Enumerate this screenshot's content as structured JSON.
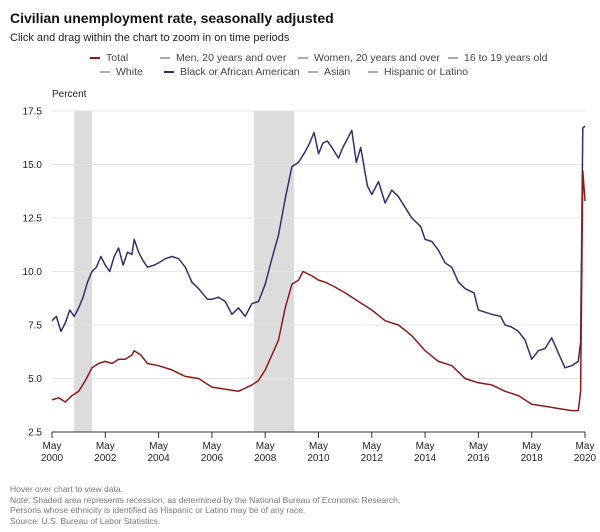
{
  "header": {
    "title": "Civilian unemployment rate, seasonally adjusted",
    "subtitle": "Click and drag within the chart to zoom in on time periods"
  },
  "legend": [
    {
      "label": "Total",
      "color": "#8b1a1a",
      "active": true
    },
    {
      "label": "Men, 20 years and over",
      "color": "#aaaaaa",
      "active": false
    },
    {
      "label": "Women, 20 years and over",
      "color": "#aaaaaa",
      "active": false
    },
    {
      "label": "16 to 19 years old",
      "color": "#aaaaaa",
      "active": false
    },
    {
      "label": "White",
      "color": "#aaaaaa",
      "active": false
    },
    {
      "label": "Black or African American",
      "color": "#3b2c6b",
      "active": true
    },
    {
      "label": "Asian",
      "color": "#aaaaaa",
      "active": false
    },
    {
      "label": "Hispanic or Latino",
      "color": "#aaaaaa",
      "active": false
    }
  ],
  "footer": {
    "hover_note": "Hover over chart to view data.",
    "note_recession": "Note: Shaded area represents recession, as determined by the National Bureau of Economic Research.",
    "note_ethnicity": "Persons whose ethnicity is identified as Hispanic or Latino may be of any race.",
    "source": "Source: U.S. Bureau of Labor Statistics."
  },
  "chart_data": {
    "type": "line",
    "ylabel": "Percent",
    "ylim": [
      2.5,
      17.5
    ],
    "yticks": [
      "2.5",
      "5.0",
      "7.5",
      "10.0",
      "12.5",
      "15.0",
      "17.5"
    ],
    "xlim": [
      "2000-05",
      "2020-05"
    ],
    "xticks": [
      {
        "month": "May",
        "year": "2000"
      },
      {
        "month": "May",
        "year": "2002"
      },
      {
        "month": "May",
        "year": "2004"
      },
      {
        "month": "May",
        "year": "2006"
      },
      {
        "month": "May",
        "year": "2008"
      },
      {
        "month": "May",
        "year": "2010"
      },
      {
        "month": "May",
        "year": "2012"
      },
      {
        "month": "May",
        "year": "2014"
      },
      {
        "month": "May",
        "year": "2016"
      },
      {
        "month": "May",
        "year": "2018"
      },
      {
        "month": "May",
        "year": "2020"
      }
    ],
    "recessions": [
      {
        "start": "2001-03",
        "end": "2001-11"
      },
      {
        "start": "2007-12",
        "end": "2009-06"
      }
    ],
    "series": [
      {
        "name": "Total",
        "color": "#8b1a1a",
        "points": [
          [
            "2000-05",
            4.0
          ],
          [
            "2000-08",
            4.1
          ],
          [
            "2000-11",
            3.9
          ],
          [
            "2001-02",
            4.2
          ],
          [
            "2001-05",
            4.4
          ],
          [
            "2001-08",
            4.9
          ],
          [
            "2001-11",
            5.5
          ],
          [
            "2002-02",
            5.7
          ],
          [
            "2002-05",
            5.8
          ],
          [
            "2002-08",
            5.7
          ],
          [
            "2002-11",
            5.9
          ],
          [
            "2003-02",
            5.9
          ],
          [
            "2003-05",
            6.1
          ],
          [
            "2003-06",
            6.3
          ],
          [
            "2003-09",
            6.1
          ],
          [
            "2003-12",
            5.7
          ],
          [
            "2004-05",
            5.6
          ],
          [
            "2004-11",
            5.4
          ],
          [
            "2005-05",
            5.1
          ],
          [
            "2005-11",
            5.0
          ],
          [
            "2006-05",
            4.6
          ],
          [
            "2006-11",
            4.5
          ],
          [
            "2007-05",
            4.4
          ],
          [
            "2007-11",
            4.7
          ],
          [
            "2008-02",
            4.9
          ],
          [
            "2008-05",
            5.4
          ],
          [
            "2008-08",
            6.1
          ],
          [
            "2008-11",
            6.8
          ],
          [
            "2009-02",
            8.3
          ],
          [
            "2009-05",
            9.4
          ],
          [
            "2009-08",
            9.6
          ],
          [
            "2009-10",
            10.0
          ],
          [
            "2010-02",
            9.8
          ],
          [
            "2010-05",
            9.6
          ],
          [
            "2010-08",
            9.5
          ],
          [
            "2010-12",
            9.3
          ],
          [
            "2011-05",
            9.0
          ],
          [
            "2011-11",
            8.6
          ],
          [
            "2012-05",
            8.2
          ],
          [
            "2012-11",
            7.7
          ],
          [
            "2013-05",
            7.5
          ],
          [
            "2013-11",
            7.0
          ],
          [
            "2014-05",
            6.3
          ],
          [
            "2014-11",
            5.8
          ],
          [
            "2015-05",
            5.6
          ],
          [
            "2015-11",
            5.0
          ],
          [
            "2016-05",
            4.8
          ],
          [
            "2016-11",
            4.7
          ],
          [
            "2017-05",
            4.4
          ],
          [
            "2017-11",
            4.2
          ],
          [
            "2018-05",
            3.8
          ],
          [
            "2018-11",
            3.7
          ],
          [
            "2019-05",
            3.6
          ],
          [
            "2019-11",
            3.5
          ],
          [
            "2020-02",
            3.5
          ],
          [
            "2020-03",
            4.4
          ],
          [
            "2020-04",
            14.7
          ],
          [
            "2020-05",
            13.3
          ]
        ]
      },
      {
        "name": "Black or African American",
        "color": "#3b2c6b",
        "points": [
          [
            "2000-05",
            7.7
          ],
          [
            "2000-07",
            7.9
          ],
          [
            "2000-09",
            7.2
          ],
          [
            "2000-11",
            7.6
          ],
          [
            "2001-01",
            8.2
          ],
          [
            "2001-03",
            7.9
          ],
          [
            "2001-05",
            8.3
          ],
          [
            "2001-07",
            8.8
          ],
          [
            "2001-09",
            9.5
          ],
          [
            "2001-11",
            10.0
          ],
          [
            "2002-01",
            10.2
          ],
          [
            "2002-03",
            10.7
          ],
          [
            "2002-05",
            10.3
          ],
          [
            "2002-07",
            10.0
          ],
          [
            "2002-09",
            10.7
          ],
          [
            "2002-11",
            11.1
          ],
          [
            "2003-01",
            10.3
          ],
          [
            "2003-03",
            10.9
          ],
          [
            "2003-05",
            10.8
          ],
          [
            "2003-06",
            11.5
          ],
          [
            "2003-08",
            10.9
          ],
          [
            "2003-10",
            10.5
          ],
          [
            "2003-12",
            10.2
          ],
          [
            "2004-03",
            10.3
          ],
          [
            "2004-05",
            10.4
          ],
          [
            "2004-08",
            10.6
          ],
          [
            "2004-11",
            10.7
          ],
          [
            "2005-02",
            10.6
          ],
          [
            "2005-05",
            10.2
          ],
          [
            "2005-08",
            9.5
          ],
          [
            "2005-11",
            9.2
          ],
          [
            "2006-03",
            8.7
          ],
          [
            "2006-05",
            8.7
          ],
          [
            "2006-08",
            8.8
          ],
          [
            "2006-11",
            8.6
          ],
          [
            "2007-02",
            8.0
          ],
          [
            "2007-05",
            8.3
          ],
          [
            "2007-08",
            7.9
          ],
          [
            "2007-11",
            8.5
          ],
          [
            "2008-02",
            8.6
          ],
          [
            "2008-05",
            9.4
          ],
          [
            "2008-08",
            10.6
          ],
          [
            "2008-11",
            11.7
          ],
          [
            "2009-02",
            13.4
          ],
          [
            "2009-05",
            14.9
          ],
          [
            "2009-08",
            15.1
          ],
          [
            "2009-11",
            15.6
          ],
          [
            "2010-01",
            16.0
          ],
          [
            "2010-03",
            16.5
          ],
          [
            "2010-05",
            15.5
          ],
          [
            "2010-07",
            16.0
          ],
          [
            "2010-09",
            16.1
          ],
          [
            "2010-11",
            15.8
          ],
          [
            "2011-02",
            15.3
          ],
          [
            "2011-04",
            15.8
          ],
          [
            "2011-06",
            16.2
          ],
          [
            "2011-08",
            16.6
          ],
          [
            "2011-10",
            15.1
          ],
          [
            "2011-12",
            15.8
          ],
          [
            "2012-03",
            14.0
          ],
          [
            "2012-05",
            13.6
          ],
          [
            "2012-08",
            14.2
          ],
          [
            "2012-11",
            13.2
          ],
          [
            "2013-02",
            13.8
          ],
          [
            "2013-05",
            13.5
          ],
          [
            "2013-08",
            13.0
          ],
          [
            "2013-11",
            12.5
          ],
          [
            "2014-03",
            12.1
          ],
          [
            "2014-05",
            11.5
          ],
          [
            "2014-08",
            11.4
          ],
          [
            "2014-11",
            11.0
          ],
          [
            "2015-02",
            10.4
          ],
          [
            "2015-05",
            10.2
          ],
          [
            "2015-08",
            9.5
          ],
          [
            "2015-11",
            9.2
          ],
          [
            "2016-03",
            9.0
          ],
          [
            "2016-05",
            8.2
          ],
          [
            "2016-08",
            8.1
          ],
          [
            "2016-11",
            8.0
          ],
          [
            "2017-03",
            7.9
          ],
          [
            "2017-05",
            7.5
          ],
          [
            "2017-08",
            7.4
          ],
          [
            "2017-11",
            7.2
          ],
          [
            "2018-02",
            6.8
          ],
          [
            "2018-05",
            5.9
          ],
          [
            "2018-08",
            6.3
          ],
          [
            "2018-11",
            6.4
          ],
          [
            "2019-02",
            6.9
          ],
          [
            "2019-05",
            6.2
          ],
          [
            "2019-08",
            5.5
          ],
          [
            "2019-11",
            5.6
          ],
          [
            "2020-02",
            5.8
          ],
          [
            "2020-03",
            6.7
          ],
          [
            "2020-04",
            16.7
          ],
          [
            "2020-05",
            16.8
          ]
        ]
      }
    ]
  }
}
